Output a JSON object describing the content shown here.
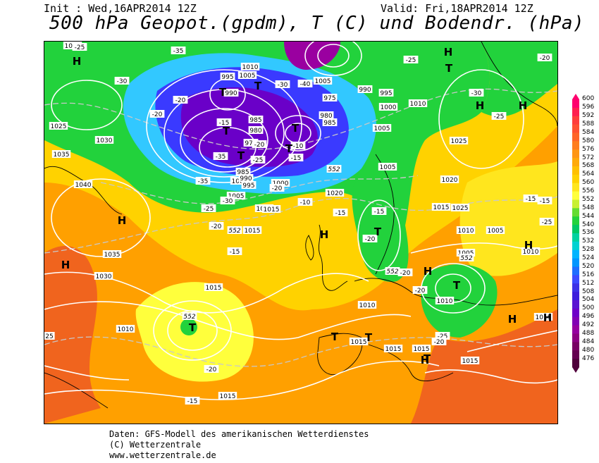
{
  "header": {
    "init": "Init : Wed,16APR2014 12Z",
    "valid": "Valid: Fri,18APR2014 12Z",
    "title": "500 hPa Geopot.(gpdm), T (C) und Bodendr. (hPa)"
  },
  "colors": {
    "deep_purple": "#6a00c8",
    "blue": "#3a3aff",
    "cyan": "#32c8ff",
    "green": "#22d23c",
    "yellow": "#ffff3c",
    "orange": "#ffa000",
    "red_orange": "#f0641e",
    "isobar": "#ffffff",
    "isotherm": "#c8c8c8",
    "coast": "#000000"
  },
  "scale": {
    "values": [
      "600",
      "596",
      "592",
      "588",
      "584",
      "580",
      "576",
      "572",
      "568",
      "564",
      "560",
      "556",
      "552",
      "548",
      "544",
      "540",
      "536",
      "532",
      "528",
      "524",
      "520",
      "516",
      "512",
      "508",
      "504",
      "500",
      "496",
      "492",
      "488",
      "484",
      "480",
      "476"
    ],
    "colors": [
      "#ff006e",
      "#ff1e50",
      "#ff3c3c",
      "#ff5032",
      "#ff6428",
      "#ff7d1e",
      "#ff9614",
      "#ffaa0a",
      "#ffc000",
      "#ffd200",
      "#ffe61e",
      "#ffff3c",
      "#c8f032",
      "#64dc32",
      "#22d23c",
      "#00c864",
      "#00d2a0",
      "#00d2d2",
      "#00b4ff",
      "#0096ff",
      "#1e6eff",
      "#3c4bff",
      "#3c32e6",
      "#3c1edc",
      "#5a14d2",
      "#6e00c8",
      "#8200b4",
      "#9600a0",
      "#8c0082",
      "#780064",
      "#640050",
      "#50003c"
    ]
  },
  "map": {
    "pressure_labels": [
      "1030",
      "1025",
      "1030",
      "1035",
      "1040",
      "1035",
      "1030",
      "1015",
      "1015",
      "1010",
      "1015",
      "1010",
      "1005",
      "1000",
      "995",
      "990",
      "985",
      "980",
      "975",
      "985",
      "990",
      "995",
      "1000",
      "1005",
      "1010",
      "1015",
      "1020",
      "1015",
      "1010",
      "1015",
      "1015",
      "1025",
      "1020",
      "1015",
      "1010",
      "1005",
      "1005",
      "1010",
      "1015",
      "1010",
      "1015",
      "1025",
      "975",
      "980",
      "985",
      "990",
      "995",
      "1000",
      "1005",
      "1005",
      "1005",
      "1010"
    ],
    "temp_labels": [
      "-35",
      "-30",
      "-25",
      "-20",
      "-15",
      "-20",
      "-30",
      "-35",
      "-40",
      "-35",
      "-30",
      "-25",
      "-20",
      "-15",
      "-20",
      "-25",
      "-20",
      "-15",
      "-20",
      "-20",
      "-25",
      "-30",
      "-25",
      "-20",
      "-15",
      "-10",
      "-15",
      "-10",
      "-20",
      "-25",
      "-15",
      "-15",
      "-25",
      "25",
      "-20",
      "-20",
      "-15"
    ],
    "geo_labels": [
      "552",
      "552",
      "552",
      "552",
      "552"
    ],
    "highs": [
      "H",
      "H",
      "H",
      "H",
      "H",
      "H",
      "H",
      "H",
      "H",
      "H",
      "H",
      "H"
    ],
    "lows": [
      "T",
      "T",
      "T",
      "T",
      "T",
      "T",
      "T",
      "T",
      "T",
      "T",
      "T",
      "T",
      "T"
    ]
  },
  "footer": {
    "line1": "Daten: GFS-Modell des amerikanischen Wetterdienstes",
    "line2": "(C) Wetterzentrale",
    "line3": "www.wetterzentrale.de"
  }
}
